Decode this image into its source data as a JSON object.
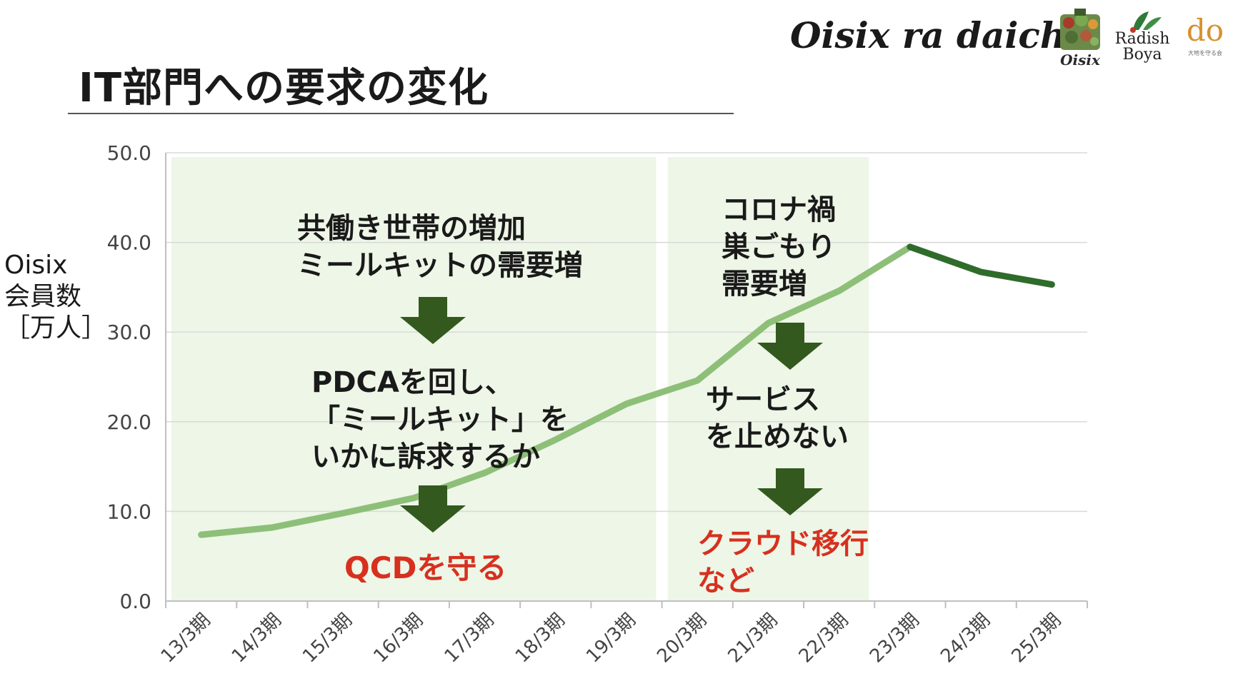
{
  "slide": {
    "title": "IT部門への要求の変化"
  },
  "logo": {
    "brand": "Oisix ra daichi",
    "sub_logos": [
      {
        "name": "Oisix",
        "text": "Oisix"
      },
      {
        "name": "Radish Boya",
        "text_line1": "Radish",
        "text_line2": "Boya"
      },
      {
        "name": "do",
        "text": "do",
        "subtext": "大地を守る会"
      }
    ]
  },
  "colors": {
    "line_light": "#8ebf78",
    "line_dark": "#2f6b2b",
    "band": "#edf6e7",
    "arrow": "#33591f",
    "accent_red": "#d7301f",
    "grid": "#d9d9d9",
    "axis": "#bfbfbf"
  },
  "chart_data": {
    "type": "line",
    "title": "",
    "ylabel_lines": [
      "Oisix",
      "会員数",
      "［万人］"
    ],
    "xlabel": "",
    "categories": [
      "13/3期",
      "14/3期",
      "15/3期",
      "16/3期",
      "17/3期",
      "18/3期",
      "19/3期",
      "20/3期",
      "21/3期",
      "22/3期",
      "23/3期",
      "24/3期",
      "25/3期"
    ],
    "y_tick_labels": [
      "0.0",
      "10.0",
      "20.0",
      "30.0",
      "40.0",
      "50.0"
    ],
    "ylim": [
      0,
      50
    ],
    "grid": true,
    "series": [
      {
        "x": [
          "13/3期",
          "14/3期",
          "15/3期",
          "16/3期",
          "17/3期",
          "18/3期",
          "19/3期",
          "20/3期",
          "21/3期",
          "22/3期",
          "23/3期",
          "24/3期",
          "25/3期"
        ],
        "values": [
          7.4,
          8.2,
          9.8,
          11.5,
          14.3,
          18.0,
          22.0,
          24.6,
          31.0,
          34.6,
          39.5,
          36.7,
          35.3
        ]
      }
    ],
    "bands": [
      {
        "from": "13/3期",
        "to": "19/3期"
      },
      {
        "from": "20/3期",
        "to": "22/3期"
      }
    ]
  },
  "annotations": {
    "left": {
      "cause_line1": "共働き世帯の増加",
      "cause_line2": "ミールキットの需要増",
      "action_line1": "PDCAを回し、",
      "action_line2": "「ミールキット」を",
      "action_line3": "いかに訴求するか",
      "result": "QCDを守る"
    },
    "right": {
      "cause_line1": "コロナ禍",
      "cause_line2": "巣ごもり",
      "cause_line3": "需要増",
      "action_line1": "サービス",
      "action_line2": "を止めない",
      "result_line1": "クラウド移行",
      "result_line2": "など"
    }
  }
}
